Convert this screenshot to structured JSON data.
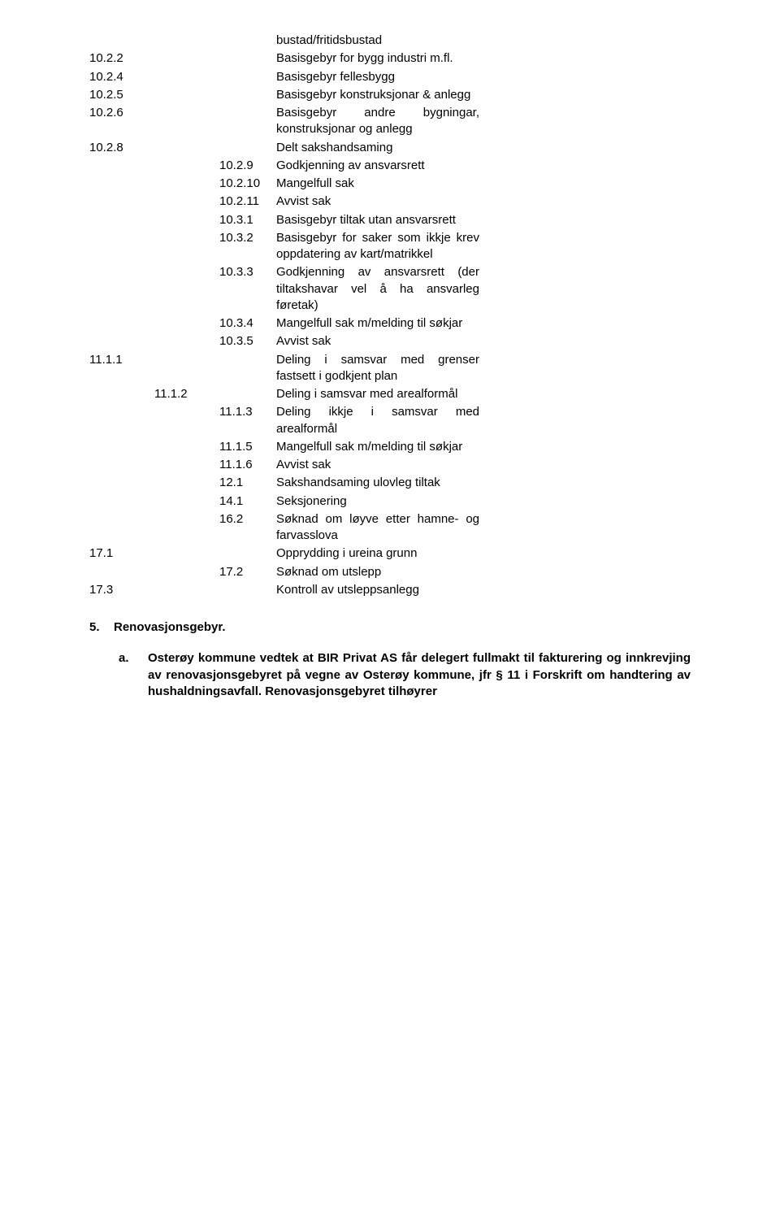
{
  "rows": [
    {
      "indent": 2,
      "num": "",
      "text": "bustad/fritidsbustad",
      "just": "jl"
    },
    {
      "indent": 0,
      "num": "10.2.2",
      "text": "Basisgebyr for bygg industri m.fl."
    },
    {
      "indent": 0,
      "num": "10.2.4",
      "text": "Basisgebyr fellesbygg",
      "just": "jl"
    },
    {
      "indent": 0,
      "num": "10.2.5",
      "text": "Basisgebyr konstruksjonar & anlegg"
    },
    {
      "indent": 0,
      "num": "10.2.6",
      "text": "Basisgebyr andre bygningar, konstruksjonar og anlegg"
    },
    {
      "indent": 0,
      "num": "10.2.8",
      "text": "Delt sakshandsaming",
      "just": "jl"
    },
    {
      "indent": 2,
      "num": "10.2.9",
      "text": "Godkjenning av ansvarsrett"
    },
    {
      "indent": 2,
      "num": "10.2.10",
      "text": "Mangelfull sak",
      "just": "jl"
    },
    {
      "indent": 2,
      "num": "10.2.11",
      "text": "Avvist sak",
      "just": "jl"
    },
    {
      "indent": 2,
      "num": "10.3.1",
      "text": "Basisgebyr tiltak utan ansvarsrett"
    },
    {
      "indent": 2,
      "num": "10.3.2",
      "text": "Basisgebyr for saker som ikkje krev oppdatering av kart/matrikkel"
    },
    {
      "indent": 2,
      "num": "10.3.3",
      "text": "Godkjenning av ansvarsrett (der tiltakshavar vel å ha ansvarleg føretak)"
    },
    {
      "indent": 2,
      "num": "10.3.4",
      "text": "Mangelfull sak m/melding til søkjar"
    },
    {
      "indent": 2,
      "num": "10.3.5",
      "text": "Avvist sak",
      "just": "jl"
    },
    {
      "indent": 0,
      "num": "11.1.1",
      "text": "Deling i samsvar med grenser fastsett i godkjent plan"
    },
    {
      "indent": 1,
      "num": "11.1.2",
      "text": "Deling i samsvar med arealformål"
    },
    {
      "indent": 2,
      "num": "11.1.3",
      "text": "Deling ikkje i samsvar med arealformål"
    },
    {
      "indent": 2,
      "num": "11.1.5",
      "text": "Mangelfull sak m/melding til søkjar"
    },
    {
      "indent": 2,
      "num": "11.1.6",
      "text": "Avvist sak",
      "just": "jl"
    },
    {
      "indent": 2,
      "num": "12.1",
      "text": "Sakshandsaming ulovleg tiltak"
    },
    {
      "indent": 2,
      "num": "14.1",
      "text": "Seksjonering",
      "just": "jl"
    },
    {
      "indent": 2,
      "num": "16.2",
      "text": "Søknad om løyve etter hamne- og farvasslova"
    },
    {
      "indent": 0,
      "num": "17.1",
      "text": "Opprydding i ureina grunn"
    },
    {
      "indent": 2,
      "num": "17.2",
      "text": "Søknad om utslepp",
      "just": "jl"
    },
    {
      "indent": 0,
      "num": "17.3",
      "text": "Kontroll av utsleppsanlegg"
    }
  ],
  "section5": {
    "num": "5.",
    "title": "Renovasjonsgebyr.",
    "para_letter": "a.",
    "para_text": "Osterøy kommune vedtek at BIR Privat AS får delegert fullmakt til fakturering og innkrevjing av renovasjonsgebyret på vegne av Osterøy kommune, jfr § 11 i Forskrift om handtering av hushaldningsavfall. Renovasjonsgebyret tilhøyrer"
  }
}
